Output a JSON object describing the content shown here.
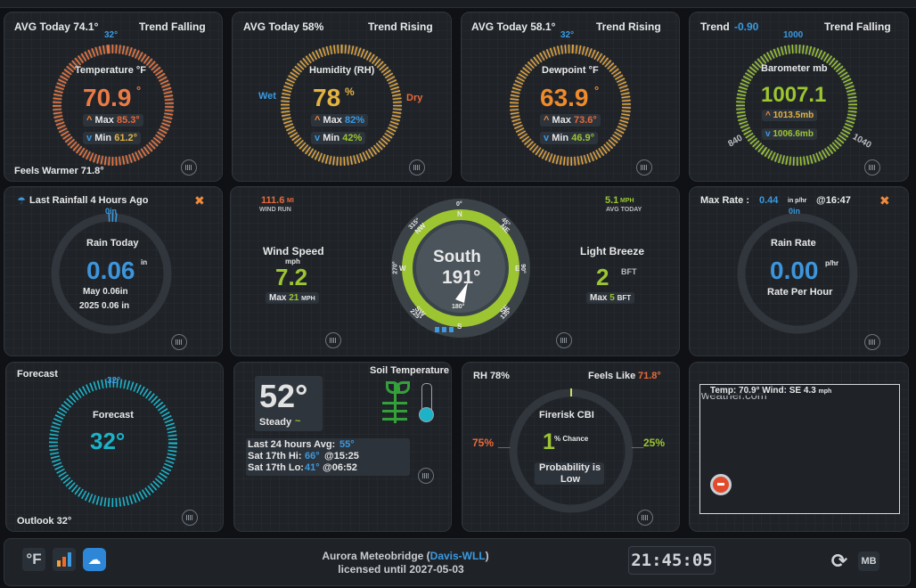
{
  "temperature": {
    "avg_label": "AVG Today 74.1°",
    "trend": "Trend Falling",
    "top_mark": "32°",
    "title": "Temperature °F",
    "value": "70.9",
    "deg": "°",
    "max_label": "Max",
    "max": "85.3°",
    "min_label": "Min",
    "min": "61.2°",
    "feels": "Feels Warmer 71.8°"
  },
  "humidity": {
    "avg_label": "AVG Today 58%",
    "trend": "Trend Rising",
    "title": "Humidity (RH)",
    "value": "78",
    "unit": "%",
    "wet": "Wet",
    "dry": "Dry",
    "max_label": "Max",
    "max": "82%",
    "min_label": "Min",
    "min": "42%"
  },
  "dewpoint": {
    "avg_label": "AVG Today 58.1°",
    "trend": "Trend Rising",
    "top_mark": "32°",
    "title": "Dewpoint °F",
    "value": "63.9",
    "deg": "°",
    "max_label": "Max",
    "max": "73.6°",
    "min_label": "Min",
    "min": "46.9°"
  },
  "barometer": {
    "trend_label": "Trend",
    "trend_value": "-0.90",
    "trend": "Trend Falling",
    "top_mark": "1000",
    "title": "Barometer mb",
    "value": "1007.1",
    "max": "1013.5mb",
    "min": "1006.6mb",
    "low_mark": "840",
    "high_mark": "1040"
  },
  "rainfall": {
    "last": "Last Rainfall 4 Hours Ago",
    "top_mark": "0in",
    "title": "Rain Today",
    "value": "0.06",
    "unit": "in",
    "month": "May 0.06in",
    "year": "2025 0.06 in"
  },
  "wind": {
    "run_value": "111.6",
    "run_unit": "MI",
    "run_label": "WIND RUN",
    "avg_value": "5.1",
    "avg_unit": "MPH",
    "avg_label": "AVG TODAY",
    "speed_title": "Wind Speed",
    "speed_unit": "mph",
    "speed": "7.2",
    "max_label": "Max",
    "max": "21",
    "max_unit": "MPH",
    "direction_name": "South",
    "direction_deg": "191°",
    "beaufort_title": "Light Breeze",
    "beaufort": "2",
    "beaufort_unit": "BFT",
    "bmax_label": "Max",
    "bmax": "5",
    "bmax_unit": "BFT",
    "compass": {
      "n": "N",
      "ne": "NE",
      "e": "E",
      "se": "SE",
      "s": "S",
      "sw": "SW",
      "w": "W",
      "nw": "NW",
      "d0": "0°",
      "d45": "45°",
      "d90": "90°",
      "d135": "135°",
      "d180": "180°",
      "d225": "225°",
      "d270": "270°",
      "d315": "315°"
    }
  },
  "rainrate": {
    "max_label": "Max Rate :",
    "max_value": "0.44",
    "max_unit": "in p/hr",
    "time": "@16:47",
    "top_mark": "0in",
    "title": "Rain Rate",
    "value": "0.00",
    "unit": "p/hr",
    "caption": "Rate Per Hour"
  },
  "forecast": {
    "label": "Forecast",
    "top_mark": "32°",
    "title": "Forecast",
    "value": "32°",
    "outlook": "Outlook 32°"
  },
  "soil": {
    "title": "Soil Temperature",
    "value": "52°",
    "state": "Steady",
    "avg": "Last 24 hours Avg:",
    "avg_value": "55°",
    "hi": "Sat 17th Hi:",
    "hi_value": "66°",
    "hi_time": "@15:25",
    "lo": "Sat 17th Lo:",
    "lo_value": "41°",
    "lo_time": "@06:52"
  },
  "firerisk": {
    "rh": "RH 78%",
    "feels_label": "Feels Like",
    "feels_value": "71.8°",
    "left": "75%",
    "right": "25%",
    "title": "Firerisk CBI",
    "value": "1",
    "value_suffix": "% Chance",
    "prob": "Probability is",
    "level": "Low"
  },
  "webcam": {
    "overlay": "Temp: 70.9° Wind: SE 4.3",
    "overlay_unit": "mph",
    "broken": "weather.com"
  },
  "footer": {
    "unit_button": "°F",
    "credit": "Aurora Meteobridge (",
    "credit_link": "Davis-WLL",
    "credit_end": ")",
    "license": "licensed until 2027-05-03",
    "clock": "21:45:05",
    "mb": "MB"
  },
  "colors": {
    "panel": "#1f2328",
    "orange": "#f08a3c",
    "blue": "#3b9ae0",
    "green": "#9cc531",
    "yellow": "#e4b341",
    "teal": "#1cb3c8"
  }
}
